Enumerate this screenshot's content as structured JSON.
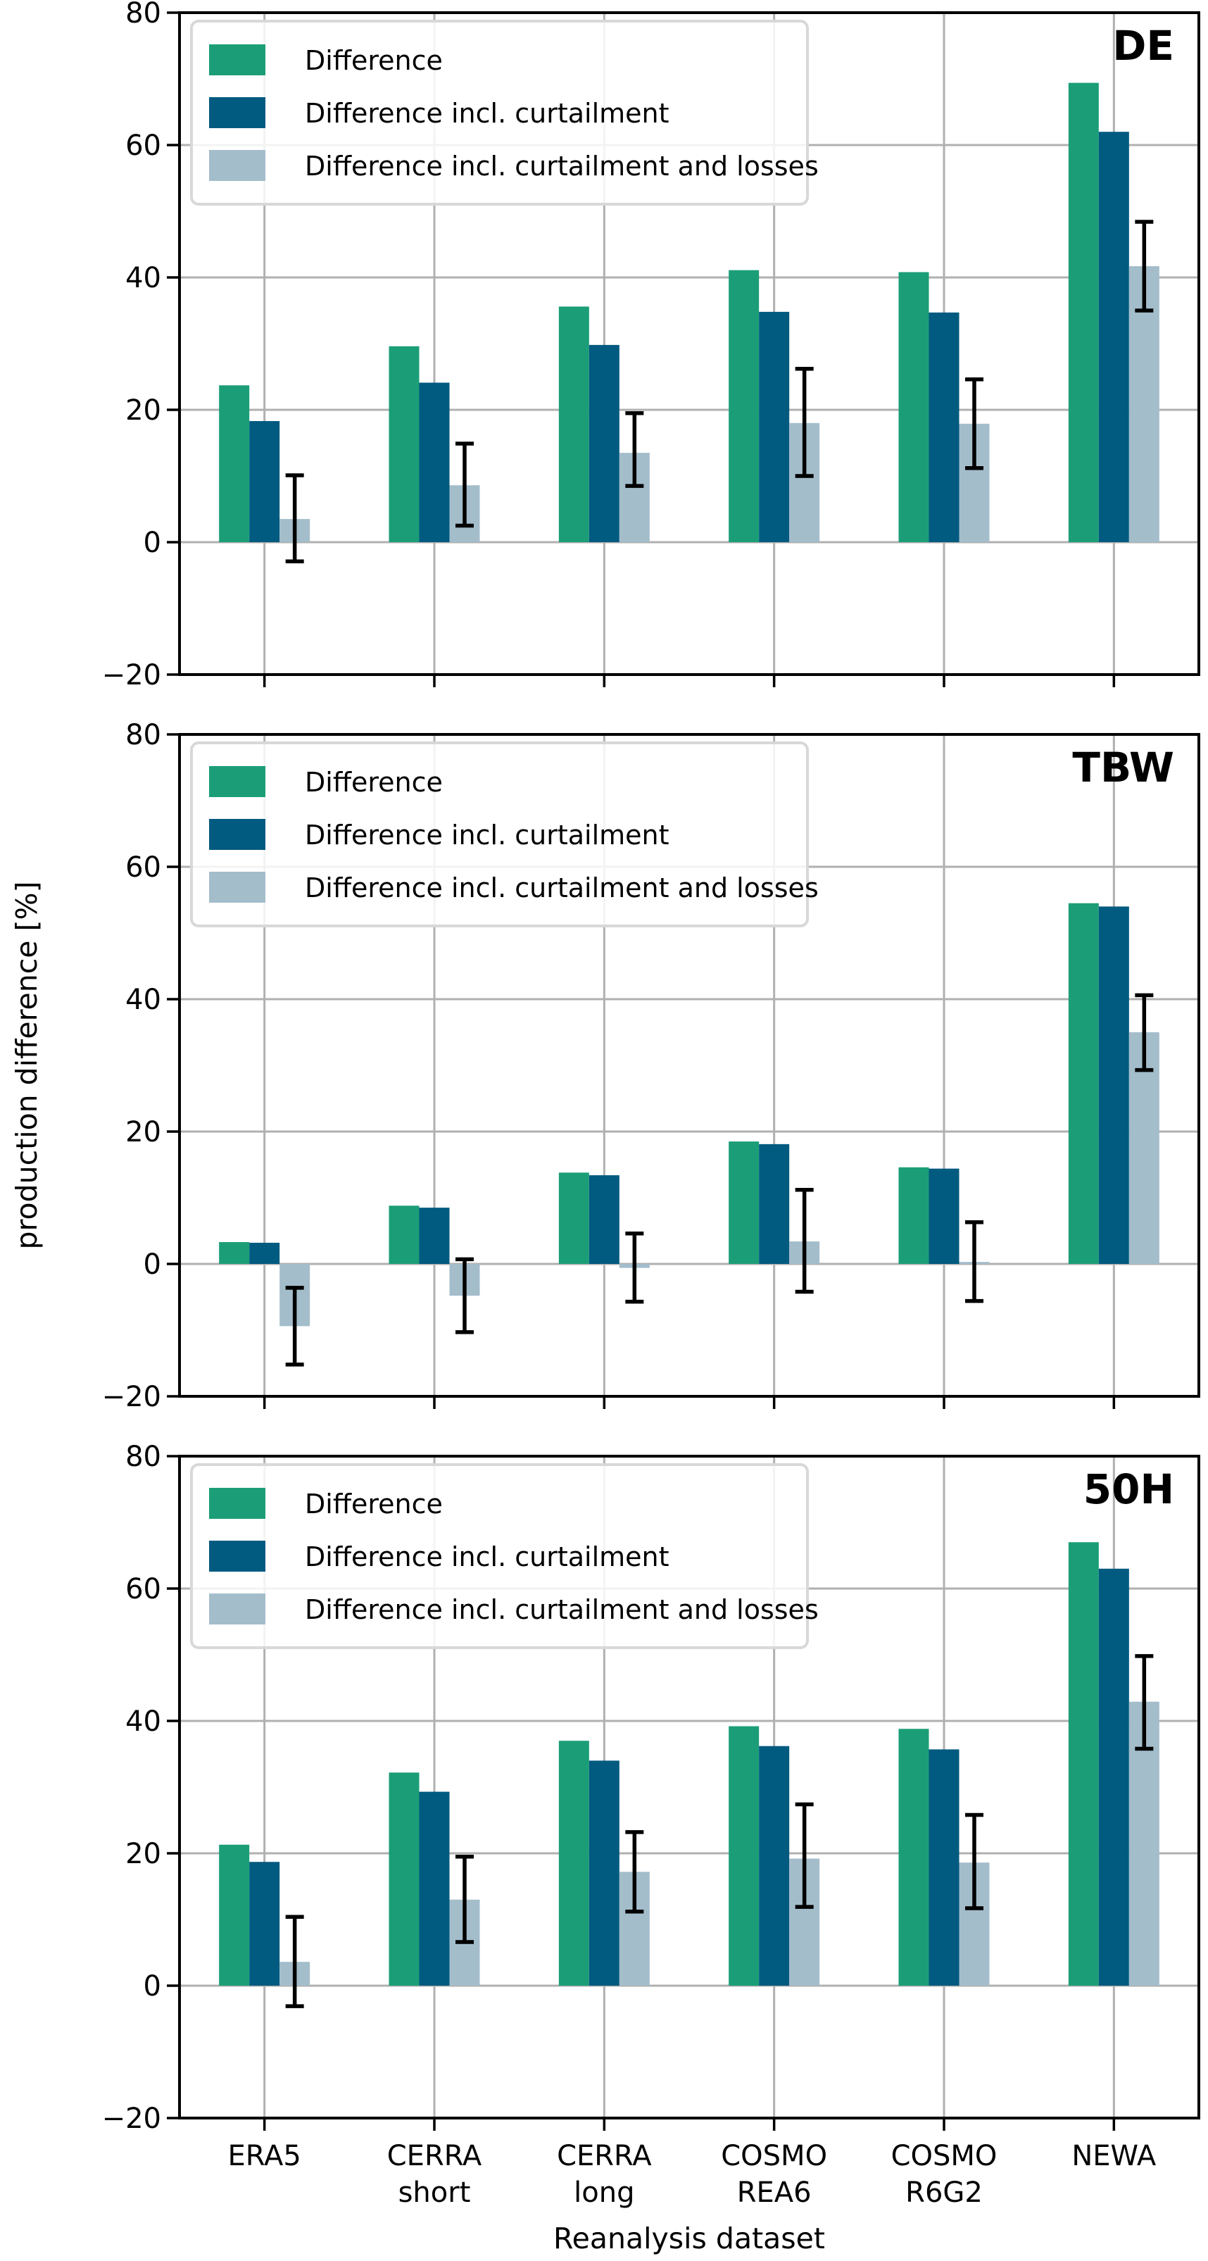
{
  "labels": {
    "ylabel": "production difference [%]",
    "xlabel": "Reanalysis dataset"
  },
  "legend": {
    "items": [
      {
        "label": "Difference",
        "color": "#1b9e77"
      },
      {
        "label": "Difference incl. curtailment",
        "color": "#015a80"
      },
      {
        "label": "Difference incl. curtailment and losses",
        "color": "#a4bdcb"
      }
    ]
  },
  "axis": {
    "yticks": [
      80,
      60,
      40,
      20,
      0,
      -20
    ],
    "yticklabels": [
      "80",
      "60",
      "40",
      "20",
      "0",
      "−20"
    ],
    "xticklabels": [
      [
        "ERA5"
      ],
      [
        "CERRA",
        "short"
      ],
      [
        "CERRA",
        "long"
      ],
      [
        "COSMO",
        "REA6"
      ],
      [
        "COSMO",
        "R6G2"
      ],
      [
        "NEWA"
      ]
    ]
  },
  "chart_data": [
    {
      "type": "bar",
      "panel_label": "DE",
      "categories": [
        "ERA5",
        "CERRA short",
        "CERRA long",
        "COSMO REA6",
        "COSMO R6G2",
        "NEWA"
      ],
      "xlabel": "Reanalysis dataset",
      "ylabel": "production difference [%]",
      "ylim": [
        -20,
        80
      ],
      "grid": true,
      "legend_position": "upper left",
      "series": [
        {
          "name": "Difference",
          "color": "#1b9e77",
          "values": [
            23.7,
            29.6,
            35.6,
            41.1,
            40.8,
            69.4
          ]
        },
        {
          "name": "Difference incl. curtailment",
          "color": "#015a80",
          "values": [
            18.3,
            24.1,
            29.8,
            34.8,
            34.7,
            62.0
          ]
        },
        {
          "name": "Difference incl. curtailment and losses",
          "color": "#a4bdcb",
          "values": [
            3.5,
            8.6,
            13.5,
            18.0,
            17.9,
            41.7
          ],
          "error_low": [
            -2.9,
            2.5,
            8.5,
            10.0,
            11.2,
            35.0
          ],
          "error_high": [
            10.1,
            14.9,
            19.5,
            26.2,
            24.6,
            48.4
          ]
        }
      ]
    },
    {
      "type": "bar",
      "panel_label": "TBW",
      "categories": [
        "ERA5",
        "CERRA short",
        "CERRA long",
        "COSMO REA6",
        "COSMO R6G2",
        "NEWA"
      ],
      "xlabel": "Reanalysis dataset",
      "ylabel": "production difference [%]",
      "ylim": [
        -20,
        80
      ],
      "grid": true,
      "legend_position": "upper left",
      "series": [
        {
          "name": "Difference",
          "color": "#1b9e77",
          "values": [
            3.3,
            8.8,
            13.8,
            18.5,
            14.6,
            54.5
          ]
        },
        {
          "name": "Difference incl. curtailment",
          "color": "#015a80",
          "values": [
            3.2,
            8.5,
            13.4,
            18.1,
            14.4,
            54.0
          ]
        },
        {
          "name": "Difference incl. curtailment and losses",
          "color": "#a4bdcb",
          "values": [
            -9.4,
            -4.8,
            -0.6,
            3.4,
            0.3,
            35.0
          ],
          "error_low": [
            -15.2,
            -10.3,
            -5.7,
            -4.2,
            -5.6,
            29.3
          ],
          "error_high": [
            -3.6,
            0.7,
            4.6,
            11.2,
            6.3,
            40.6
          ]
        }
      ]
    },
    {
      "type": "bar",
      "panel_label": "50H",
      "categories": [
        "ERA5",
        "CERRA short",
        "CERRA long",
        "COSMO REA6",
        "COSMO R6G2",
        "NEWA"
      ],
      "xlabel": "Reanalysis dataset",
      "ylabel": "production difference [%]",
      "ylim": [
        -20,
        80
      ],
      "grid": true,
      "legend_position": "upper left",
      "series": [
        {
          "name": "Difference",
          "color": "#1b9e77",
          "values": [
            21.3,
            32.2,
            37.0,
            39.2,
            38.8,
            67.0
          ]
        },
        {
          "name": "Difference incl. curtailment",
          "color": "#015a80",
          "values": [
            18.7,
            29.3,
            34.0,
            36.2,
            35.7,
            63.0
          ]
        },
        {
          "name": "Difference incl. curtailment and losses",
          "color": "#a4bdcb",
          "values": [
            3.6,
            13.0,
            17.2,
            19.2,
            18.6,
            42.9
          ],
          "error_low": [
            -3.1,
            6.6,
            11.2,
            11.9,
            11.7,
            35.8
          ],
          "error_high": [
            10.4,
            19.5,
            23.2,
            27.4,
            25.8,
            49.8
          ]
        }
      ]
    }
  ]
}
